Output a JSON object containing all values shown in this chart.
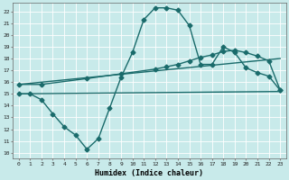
{
  "title": "",
  "xlabel": "Humidex (Indice chaleur)",
  "bg_color": "#c8eaea",
  "grid_color": "#b0d8d8",
  "line_color": "#1a6b6b",
  "xlim": [
    -0.5,
    23.5
  ],
  "ylim": [
    9.5,
    22.7
  ],
  "xticks": [
    0,
    1,
    2,
    3,
    4,
    5,
    6,
    7,
    8,
    9,
    10,
    11,
    12,
    13,
    14,
    15,
    16,
    17,
    18,
    19,
    20,
    21,
    22,
    23
  ],
  "yticks": [
    10,
    11,
    12,
    13,
    14,
    15,
    16,
    17,
    18,
    19,
    20,
    21,
    22
  ],
  "series": [
    {
      "x": [
        0,
        1,
        2,
        3,
        4,
        5,
        6,
        7,
        8,
        9,
        10,
        11,
        12,
        13,
        14,
        15,
        16,
        17,
        18,
        19,
        20,
        21,
        22,
        23
      ],
      "y": [
        15.0,
        15.0,
        14.5,
        13.3,
        12.2,
        11.5,
        10.3,
        11.2,
        13.8,
        16.4,
        18.5,
        21.3,
        22.3,
        22.3,
        22.1,
        20.8,
        17.5,
        17.5,
        19.0,
        18.5,
        17.2,
        16.8,
        16.5,
        15.3
      ],
      "marker": "D",
      "markersize": 2.5,
      "linewidth": 1.0
    },
    {
      "x": [
        0,
        23
      ],
      "y": [
        15.8,
        18.0
      ],
      "marker": null,
      "markersize": 0,
      "linewidth": 1.0
    },
    {
      "x": [
        0,
        23
      ],
      "y": [
        15.0,
        15.2
      ],
      "marker": null,
      "markersize": 0,
      "linewidth": 1.0
    },
    {
      "x": [
        0,
        2,
        6,
        9,
        12,
        13,
        14,
        15,
        16,
        17,
        18,
        19,
        20,
        21,
        22,
        23
      ],
      "y": [
        15.8,
        15.8,
        16.3,
        16.7,
        17.1,
        17.3,
        17.5,
        17.8,
        18.1,
        18.3,
        18.6,
        18.7,
        18.5,
        18.2,
        17.8,
        15.3
      ],
      "marker": "D",
      "markersize": 2.5,
      "linewidth": 1.0
    }
  ]
}
